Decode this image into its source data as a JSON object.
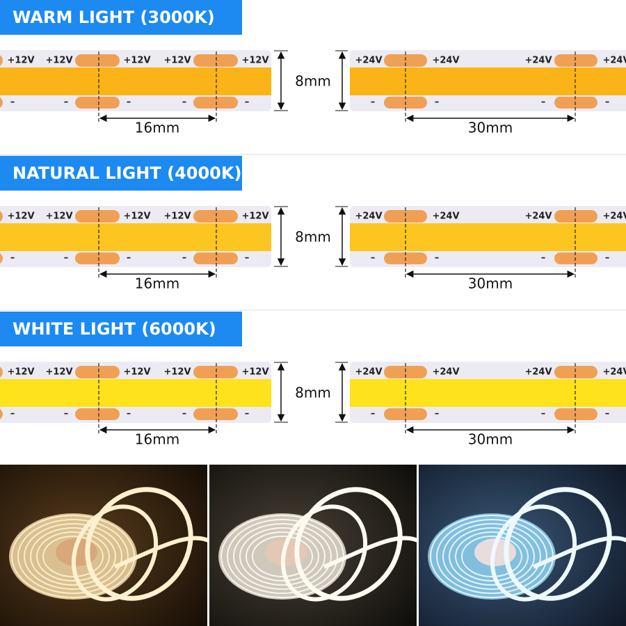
{
  "sections": [
    {
      "title": "WARM LIGHT (3000K)",
      "strip_color": "#fbb417"
    },
    {
      "title": "NATURAL LIGHT (4000K)",
      "strip_color": "#fcc51f"
    },
    {
      "title": "WHITE LIGHT (6000K)",
      "strip_color": "#fde21c"
    }
  ],
  "strip_12v": {
    "plus": "+12V",
    "minus": "–",
    "width": "8mm",
    "cut_pitch": "16mm"
  },
  "strip_24v": {
    "plus": "+24V",
    "minus": "–",
    "cut_pitch": "30mm"
  }
}
